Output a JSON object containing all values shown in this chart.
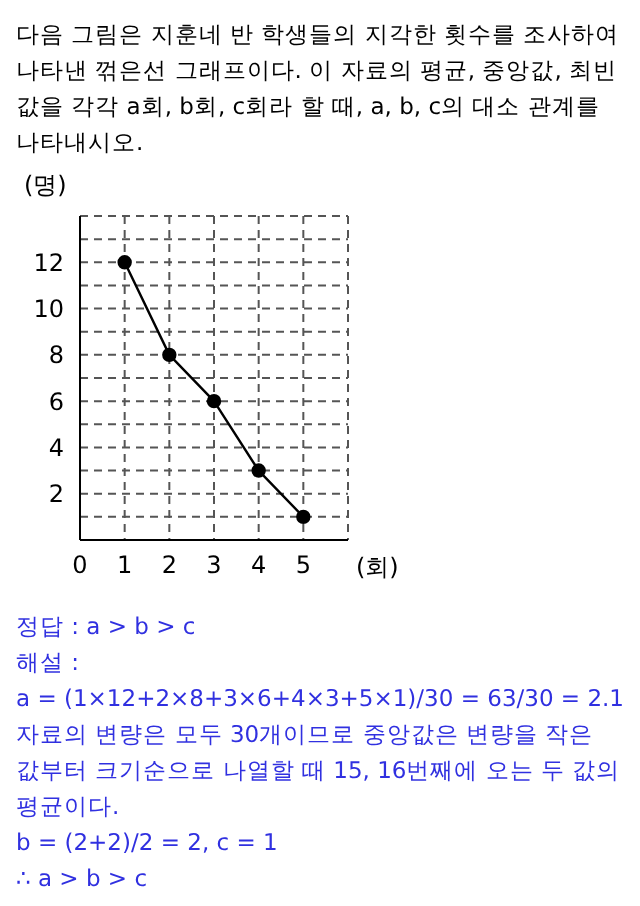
{
  "chart_data": {
    "type": "line",
    "title": "다음 그림은 지훈네 반 학생들의 지각한 횟수를 조사하여 나타낸 꺾은선 그래프이다. 이 자료의 평균, 중앙값, 최빈값을 각각 a회, b회, c회라 할 때, a, b, c의 대소 관계를 나타내시오.",
    "xlabel": "(회)",
    "ylabel": "(명)",
    "x": [
      1,
      2,
      3,
      4,
      5
    ],
    "series": [
      {
        "color": "#000000",
        "values": [
          12,
          8,
          6,
          3,
          1
        ]
      }
    ],
    "xlim": [
      0,
      6
    ],
    "xticks": [
      0,
      1,
      2,
      3,
      4,
      5
    ],
    "ylim": [
      0,
      14
    ],
    "yticks": [
      {
        "value": 1,
        "label": null
      },
      2,
      {
        "value": 3,
        "label": null
      },
      4,
      {
        "value": 5,
        "label": null
      },
      6,
      {
        "value": 7,
        "label": null
      },
      8,
      {
        "value": 9,
        "label": null
      },
      10,
      {
        "value": 11,
        "label": null
      },
      12,
      {
        "value": 13,
        "label": null
      }
    ],
    "grid": true,
    "marker": "circle",
    "line_style": "solid",
    "legend": false,
    "annotations": [
      "정답 : a > b > c",
      "해설 :",
      "a = (1×12+2×8+3×6+4×3+5×1)/30 = 63/30 = 2.1",
      "자료의 변량은 모두 30개이므로 중앙값은 변량을 작은 값부터 크기순으로 나열할 때 15, 16번째에 오는 두 값의 평균이다.",
      "b = (2+2)/2 = 2, c = 1",
      "∴ a > b > c"
    ]
  }
}
